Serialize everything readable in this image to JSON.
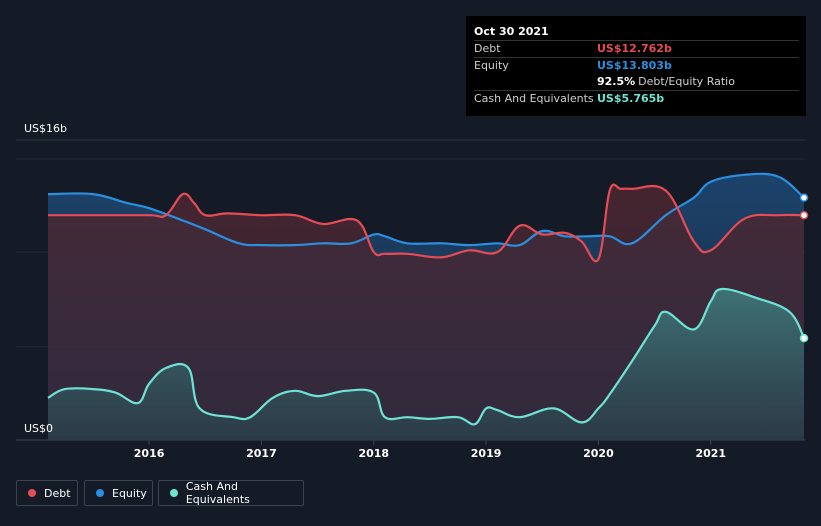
{
  "tooltip": {
    "date": "Oct 30 2021",
    "debt_label": "Debt",
    "debt_value": "US$12.762b",
    "equity_label": "Equity",
    "equity_value": "US$13.803b",
    "ratio_value": "92.5%",
    "ratio_label": "Debt/Equity Ratio",
    "cash_label": "Cash And Equivalents",
    "cash_value": "US$5.765b"
  },
  "legend": {
    "debt": "Debt",
    "equity": "Equity",
    "cash": "Cash And Equivalents"
  },
  "colors": {
    "debt": "#e64b56",
    "equity": "#2b8fe0",
    "cash": "#6fe3d3",
    "background": "#151b26"
  },
  "chart_data": {
    "type": "area",
    "y_top_label": "US$16b",
    "y_bottom_label": "US$0",
    "ylim": [
      0,
      16
    ],
    "xlim": [
      2015.1,
      2021.83
    ],
    "x_ticks": [
      "2016",
      "2017",
      "2018",
      "2019",
      "2020",
      "2021"
    ],
    "series": [
      {
        "name": "Debt",
        "x": [
          2015.1,
          2015.5,
          2016.0,
          2016.15,
          2016.3,
          2016.4,
          2016.5,
          2016.7,
          2017.0,
          2017.3,
          2017.55,
          2017.85,
          2018.0,
          2018.1,
          2018.3,
          2018.6,
          2018.85,
          2019.1,
          2019.3,
          2019.5,
          2019.7,
          2019.85,
          2020.0,
          2020.1,
          2020.2,
          2020.3,
          2020.6,
          2020.85,
          2021.0,
          2021.3,
          2021.6,
          2021.83
        ],
        "values": [
          12.8,
          12.8,
          12.8,
          12.8,
          14.0,
          13.5,
          12.8,
          12.9,
          12.8,
          12.8,
          12.3,
          12.5,
          10.7,
          10.6,
          10.6,
          10.4,
          10.8,
          10.7,
          12.2,
          11.7,
          11.8,
          11.3,
          10.3,
          14.2,
          14.3,
          14.3,
          14.2,
          11.3,
          10.8,
          12.6,
          12.8,
          12.8
        ]
      },
      {
        "name": "Equity",
        "x": [
          2015.1,
          2015.5,
          2015.8,
          2016.0,
          2016.3,
          2016.5,
          2016.8,
          2017.0,
          2017.3,
          2017.55,
          2017.8,
          2018.0,
          2018.1,
          2018.3,
          2018.6,
          2018.85,
          2019.1,
          2019.3,
          2019.5,
          2019.7,
          2019.9,
          2020.1,
          2020.3,
          2020.6,
          2020.85,
          2021.0,
          2021.3,
          2021.6,
          2021.83
        ],
        "values": [
          14.0,
          14.0,
          13.5,
          13.2,
          12.5,
          12.0,
          11.2,
          11.1,
          11.1,
          11.2,
          11.2,
          11.7,
          11.6,
          11.2,
          11.2,
          11.1,
          11.2,
          11.1,
          11.9,
          11.6,
          11.6,
          11.6,
          11.2,
          12.8,
          13.8,
          14.7,
          15.1,
          15.0,
          13.8
        ]
      },
      {
        "name": "Cash And Equivalents",
        "x": [
          2015.1,
          2015.25,
          2015.5,
          2015.7,
          2015.9,
          2016.0,
          2016.15,
          2016.35,
          2016.45,
          2016.75,
          2016.9,
          2017.1,
          2017.3,
          2017.5,
          2017.75,
          2018.0,
          2018.1,
          2018.3,
          2018.5,
          2018.75,
          2018.9,
          2019.0,
          2019.1,
          2019.3,
          2019.6,
          2019.85,
          2020.0,
          2020.1,
          2020.3,
          2020.5,
          2020.6,
          2020.85,
          2021.0,
          2021.1,
          2021.4,
          2021.7,
          2021.83
        ],
        "values": [
          2.4,
          2.9,
          2.9,
          2.7,
          2.1,
          3.2,
          4.1,
          4.1,
          1.8,
          1.3,
          1.3,
          2.4,
          2.8,
          2.5,
          2.8,
          2.7,
          1.3,
          1.3,
          1.2,
          1.3,
          0.9,
          1.8,
          1.7,
          1.3,
          1.8,
          1.0,
          1.8,
          2.6,
          4.5,
          6.5,
          7.3,
          6.3,
          7.9,
          8.6,
          8.1,
          7.3,
          5.8
        ]
      }
    ]
  }
}
